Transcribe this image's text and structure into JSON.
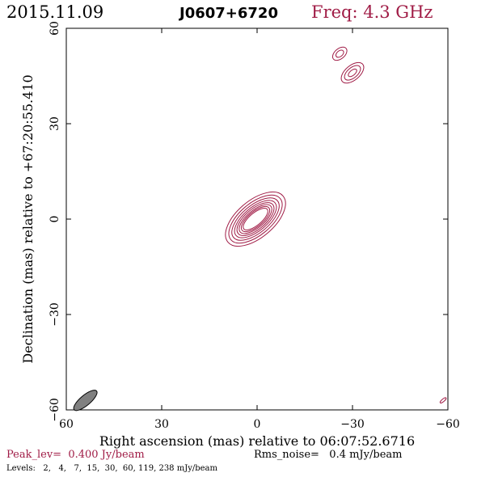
{
  "header": {
    "date": "2015.11.09",
    "source": "J0607+6720",
    "freq": "Freq: 4.3 GHz"
  },
  "footer": {
    "peak": "Peak_lev=  0.400 Jy/beam",
    "rms": "Rms_noise=   0.4 mJy/beam",
    "levels": "Levels:   2,   4,   7,  15,  30,  60, 119, 238 mJy/beam"
  },
  "colors": {
    "contour": "#a01c46",
    "axis": "#000000",
    "beam_fill": "#808080"
  },
  "chart_data": {
    "type": "contour",
    "title": "J0607+6720",
    "xlabel": "Right ascension (mas) relative to 06:07:52.6716",
    "ylabel": "Declination (mas) relative to +67:20:55.410",
    "xlim": [
      60,
      -60
    ],
    "ylim": [
      -60,
      60
    ],
    "xticks": [
      60,
      30,
      0,
      -30,
      -60
    ],
    "yticks": [
      60,
      30,
      0,
      -30,
      -60
    ],
    "xtick_labels": [
      "60",
      "30",
      "0",
      "−30",
      "−60"
    ],
    "ytick_labels": [
      "60",
      "30",
      "0",
      "−30",
      "−60"
    ],
    "contour_levels_mJy": [
      2,
      4,
      7,
      15,
      30,
      60,
      119,
      238
    ],
    "peak_Jy_per_beam": 0.4,
    "rms_noise_mJy_per_beam": 0.4,
    "components": [
      {
        "name": "core",
        "x": 0.5,
        "y": 0,
        "pa_deg": -40,
        "rings": [
          [
            4.8,
            1.9
          ],
          [
            5.5,
            2.3
          ],
          [
            6.3,
            2.7
          ],
          [
            7.1,
            3.2
          ],
          [
            8.0,
            3.7
          ],
          [
            9.0,
            4.3
          ],
          [
            10.1,
            5.0
          ],
          [
            11.3,
            5.8
          ]
        ]
      },
      {
        "name": "feature-a",
        "x": -26,
        "y": 52,
        "pa_deg": -40,
        "rings": [
          [
            1.4,
            0.9
          ],
          [
            2.6,
            1.6
          ]
        ]
      },
      {
        "name": "feature-b",
        "x": -30,
        "y": 46,
        "pa_deg": -40,
        "rings": [
          [
            1.6,
            0.8
          ],
          [
            3.0,
            1.6
          ],
          [
            4.2,
            2.3
          ]
        ]
      },
      {
        "name": "feature-c",
        "x": -58.5,
        "y": -57,
        "pa_deg": -40,
        "rings": [
          [
            1.2,
            0.4
          ]
        ]
      }
    ],
    "beam": {
      "x": 54,
      "y": -57,
      "major": 4.6,
      "minor": 1.6,
      "pa_deg": -40
    }
  }
}
